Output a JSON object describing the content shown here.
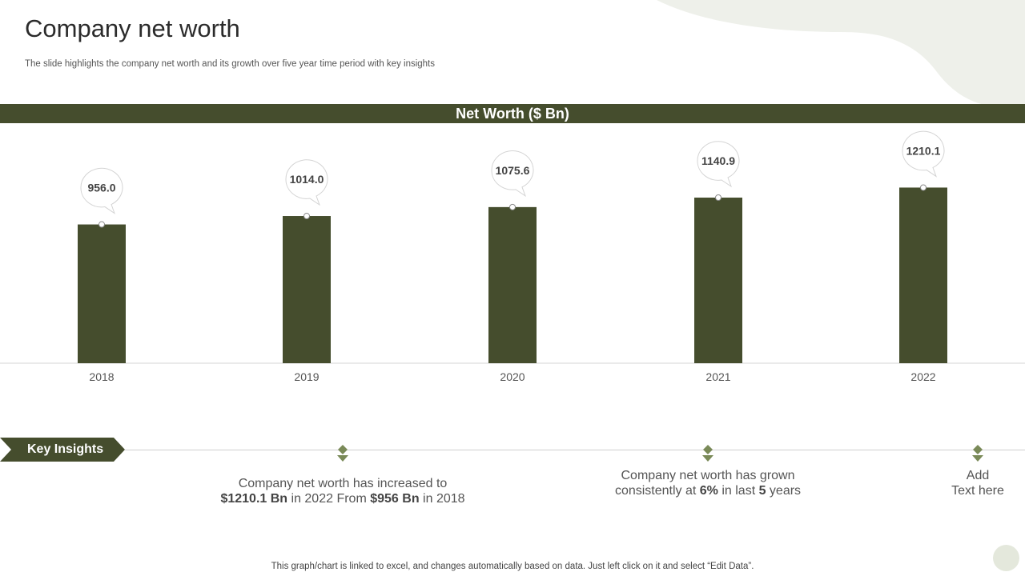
{
  "slide": {
    "title": "Company net worth",
    "subtitle": "The slide highlights the company net worth and its growth over five year time period with key insights"
  },
  "chart_data": {
    "type": "bar",
    "title": "Net Worth ($ Bn)",
    "categories": [
      "2018",
      "2019",
      "2020",
      "2021",
      "2022"
    ],
    "values": [
      956.0,
      1014.0,
      1075.6,
      1140.9,
      1210.1
    ],
    "data_labels": [
      "956.0",
      "1014.0",
      "1075.6",
      "1140.9",
      "1210.1"
    ],
    "ylim": [
      0,
      1400
    ],
    "grid": false,
    "legend": "none",
    "bar_color": "#454d2d"
  },
  "insights": {
    "label": "Key Insights",
    "items": [
      {
        "line1": "Company net worth has increased to",
        "l2_v1": "$1210.1 Bn",
        "l2_t1": " in 2022 From ",
        "l2_v2": "$956 Bn",
        "l2_t2": " in 2018"
      },
      {
        "line1": "Company net worth has grown",
        "l2_t0": "consistently  at ",
        "l2_v1": "6%",
        "l2_t1": " in last ",
        "l2_v2": "5",
        "l2_t2": " years"
      },
      {
        "line1": "Add",
        "line2": "Text here"
      }
    ]
  },
  "footer": "This graph/chart is linked to excel,  and changes automatically based on data. Just left click on it and select “Edit Data”.",
  "colors": {
    "accent": "#454d2d",
    "marker": "#7a8a58"
  }
}
